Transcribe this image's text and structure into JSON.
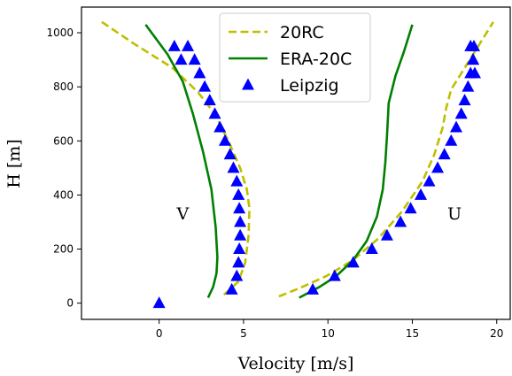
{
  "chart_data": {
    "type": "line",
    "xlabel": "Velocity [m/s]",
    "ylabel": "H [m]",
    "xlim": [
      -4.6,
      20.8
    ],
    "ylim": [
      -60,
      1095
    ],
    "xticks": [
      0,
      5,
      10,
      15,
      20
    ],
    "yticks": [
      0,
      200,
      400,
      600,
      800,
      1000
    ],
    "grid": false,
    "legend_placement": "top-center",
    "annotations": [
      {
        "text": "V",
        "x": 1.4,
        "y": 310
      },
      {
        "text": "U",
        "x": 17.5,
        "y": 310
      }
    ],
    "series": [
      {
        "name": "20RC",
        "style": "dashed",
        "color": "#bfbf00",
        "segments": [
          {
            "x": [
              -3.4,
              -1.5,
              0.8,
              2.3,
              3.3,
              4.1,
              4.8,
              5.2,
              5.35,
              5.3,
              5.1,
              4.7,
              4.0,
              3.8
            ],
            "y": [
              1040,
              960,
              870,
              780,
              700,
              600,
              500,
              420,
              350,
              250,
              150,
              80,
              40,
              30
            ]
          },
          {
            "x": [
              7.1,
              8.3,
              9.9,
              11.5,
              13.0,
              14.4,
              15.6,
              16.3,
              16.8,
              17.0,
              17.3,
              18.2,
              19.1,
              19.8
            ],
            "y": [
              25,
              55,
              100,
              160,
              240,
              340,
              450,
              550,
              650,
              720,
              790,
              880,
              970,
              1040
            ]
          }
        ]
      },
      {
        "name": "ERA-20C",
        "style": "solid",
        "color": "#008000",
        "segments": [
          {
            "x": [
              -0.8,
              0.5,
              1.4,
              2.0,
              2.6,
              3.1,
              3.35,
              3.45,
              3.4,
              3.2,
              2.9
            ],
            "y": [
              1030,
              920,
              820,
              700,
              560,
              420,
              280,
              170,
              110,
              60,
              20
            ]
          },
          {
            "x": [
              8.3,
              9.5,
              10.5,
              11.5,
              12.3,
              12.9,
              13.25,
              13.4,
              13.5,
              13.6,
              14.0,
              14.5,
              15.0
            ],
            "y": [
              20,
              60,
              100,
              160,
              230,
              320,
              420,
              520,
              620,
              740,
              840,
              930,
              1030
            ]
          }
        ]
      },
      {
        "name": "Leipzig",
        "style": "markers",
        "marker": "triangle",
        "color": "#0000ff",
        "segments": [
          {
            "x": [
              0.0,
              4.3,
              4.6,
              4.7,
              4.75,
              4.8,
              4.8,
              4.75,
              4.7,
              4.6,
              4.4,
              4.2,
              3.9,
              3.6,
              3.3,
              3.0,
              2.7,
              2.4,
              2.1,
              1.7,
              1.3,
              0.9
            ],
            "y": [
              0,
              50,
              100,
              150,
              200,
              250,
              300,
              350,
              400,
              450,
              500,
              550,
              600,
              650,
              700,
              750,
              800,
              850,
              900,
              950,
              900,
              950
            ]
          },
          {
            "x": [
              9.1,
              10.4,
              11.5,
              12.6,
              13.5,
              14.3,
              14.9,
              15.5,
              16.0,
              16.5,
              16.9,
              17.3,
              17.6,
              17.9,
              18.1,
              18.3,
              18.45,
              18.6,
              18.65,
              18.7,
              18.6,
              18.45
            ],
            "y": [
              50,
              100,
              150,
              200,
              250,
              300,
              350,
              400,
              450,
              500,
              550,
              600,
              650,
              700,
              750,
              800,
              850,
              900,
              950,
              850,
              900,
              950
            ]
          }
        ]
      }
    ]
  }
}
